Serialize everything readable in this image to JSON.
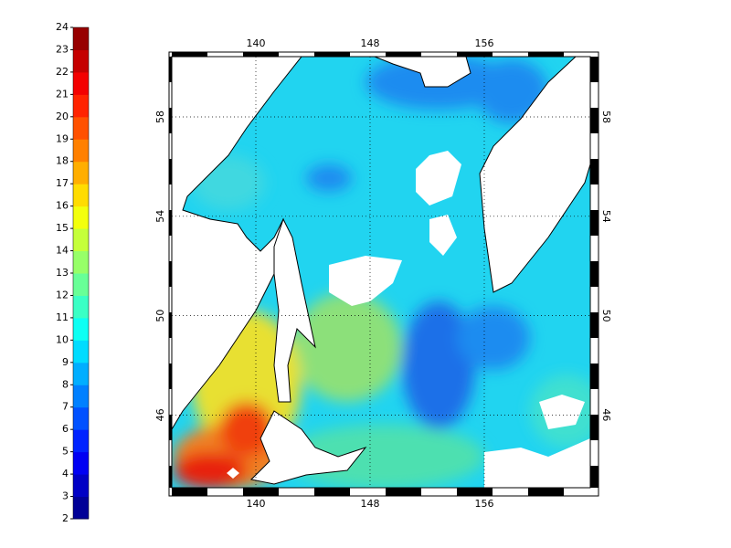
{
  "colorbar": {
    "ticks": [
      2,
      3,
      4,
      5,
      6,
      7,
      8,
      9,
      10,
      11,
      12,
      13,
      14,
      15,
      16,
      17,
      18,
      19,
      20,
      21,
      22,
      23,
      24
    ]
  },
  "map": {
    "lon_ticks": [
      140,
      148,
      156
    ],
    "lat_ticks": [
      58,
      54,
      50,
      46
    ]
  }
}
